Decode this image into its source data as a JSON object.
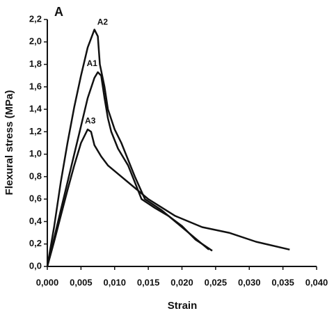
{
  "chart_data": {
    "type": "line",
    "panel_label": "A",
    "x_label": "Strain",
    "y_label": "Flexural stress (MPa)",
    "xlim": [
      0,
      0.04
    ],
    "ylim": [
      0,
      2.2
    ],
    "xticks": [
      {
        "value": 0,
        "label": "0,000"
      },
      {
        "value": 0.005,
        "label": "0,005"
      },
      {
        "value": 0.01,
        "label": "0,010"
      },
      {
        "value": 0.015,
        "label": "0,015"
      },
      {
        "value": 0.02,
        "label": "0,020"
      },
      {
        "value": 0.025,
        "label": "0,025"
      },
      {
        "value": 0.03,
        "label": "0,030"
      },
      {
        "value": 0.035,
        "label": "0,035"
      },
      {
        "value": 0.04,
        "label": "0,040"
      }
    ],
    "yticks": [
      {
        "value": 0,
        "label": "0,0"
      },
      {
        "value": 0.2,
        "label": "0,2"
      },
      {
        "value": 0.4,
        "label": "0,4"
      },
      {
        "value": 0.6,
        "label": "0,6"
      },
      {
        "value": 0.8,
        "label": "0,8"
      },
      {
        "value": 1.0,
        "label": "1,0"
      },
      {
        "value": 1.2,
        "label": "1,2"
      },
      {
        "value": 1.4,
        "label": "1,4"
      },
      {
        "value": 1.6,
        "label": "1,6"
      },
      {
        "value": 1.8,
        "label": "1,8"
      },
      {
        "value": 2.0,
        "label": "2,0"
      },
      {
        "value": 2.2,
        "label": "2,2"
      }
    ],
    "series": [
      {
        "name": "A1",
        "color": "#111111",
        "x": [
          0,
          0.001,
          0.002,
          0.003,
          0.004,
          0.005,
          0.006,
          0.007,
          0.0075,
          0.008,
          0.0085,
          0.009,
          0.0095,
          0.0105,
          0.012,
          0.013,
          0.014,
          0.016,
          0.018,
          0.02,
          0.021,
          0.022,
          0.023,
          0.0245
        ],
        "values": [
          0,
          0.25,
          0.5,
          0.75,
          1.0,
          1.25,
          1.5,
          1.68,
          1.73,
          1.7,
          1.5,
          1.32,
          1.2,
          1.05,
          0.9,
          0.75,
          0.6,
          0.52,
          0.45,
          0.36,
          0.3,
          0.24,
          0.2,
          0.14
        ]
      },
      {
        "name": "A2",
        "color": "#111111",
        "x": [
          0,
          0.001,
          0.002,
          0.003,
          0.004,
          0.005,
          0.006,
          0.007,
          0.0075,
          0.0078,
          0.0085,
          0.009,
          0.01,
          0.011,
          0.012,
          0.013,
          0.0145,
          0.017,
          0.02,
          0.022,
          0.024
        ],
        "values": [
          0,
          0.35,
          0.75,
          1.1,
          1.42,
          1.7,
          1.95,
          2.11,
          2.05,
          1.8,
          1.6,
          1.4,
          1.22,
          1.1,
          0.95,
          0.8,
          0.6,
          0.5,
          0.35,
          0.25,
          0.15
        ]
      },
      {
        "name": "A3",
        "color": "#111111",
        "x": [
          0,
          0.001,
          0.002,
          0.003,
          0.004,
          0.005,
          0.006,
          0.0065,
          0.007,
          0.008,
          0.009,
          0.012,
          0.015,
          0.019,
          0.023,
          0.027,
          0.031,
          0.036
        ],
        "values": [
          0,
          0.22,
          0.45,
          0.68,
          0.9,
          1.1,
          1.22,
          1.2,
          1.08,
          0.98,
          0.9,
          0.75,
          0.6,
          0.45,
          0.35,
          0.3,
          0.22,
          0.15
        ]
      }
    ]
  }
}
